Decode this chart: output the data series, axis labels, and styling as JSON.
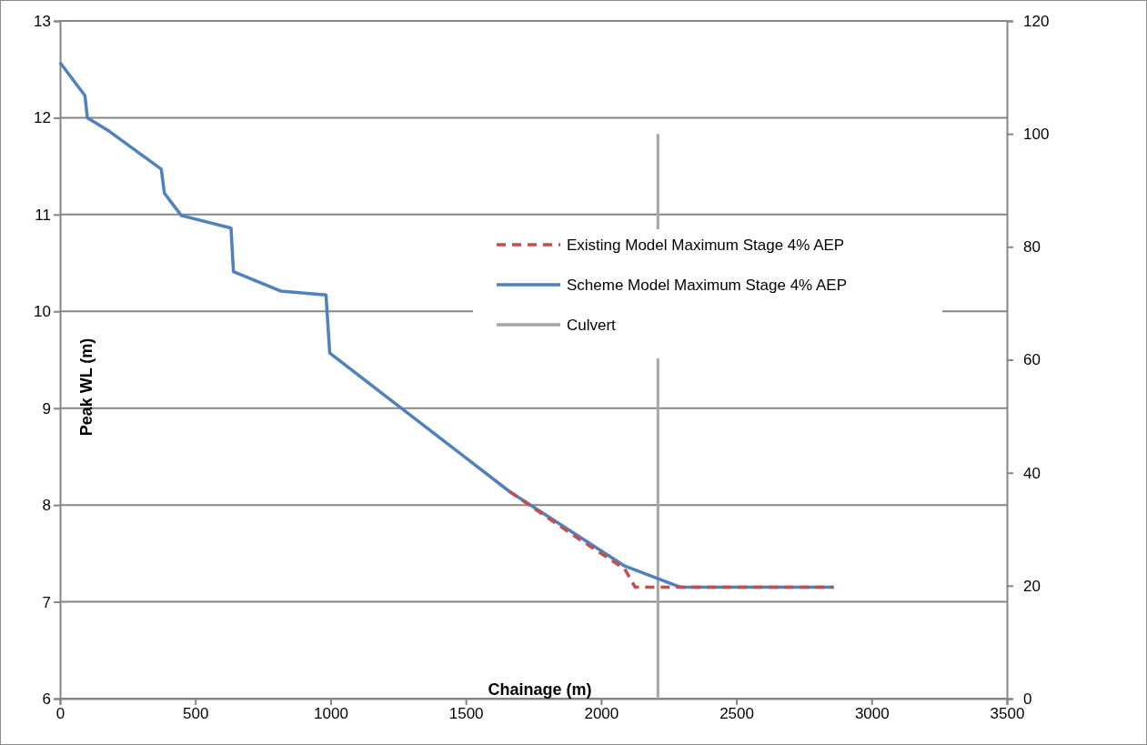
{
  "chart_data": {
    "type": "line",
    "xlabel": "Chainage (m)",
    "ylabel": "Peak WL (m)",
    "xlim": [
      0,
      3500
    ],
    "xticks": [
      0,
      500,
      1000,
      1500,
      2000,
      2500,
      3000,
      3500
    ],
    "ylim": [
      6,
      13
    ],
    "yticks": [
      6,
      7,
      8,
      9,
      10,
      11,
      12,
      13
    ],
    "y2lim": [
      0,
      120
    ],
    "y2ticks": [
      0,
      20,
      40,
      60,
      80,
      100,
      120
    ],
    "grid": "y",
    "legend": "right",
    "marker": "none",
    "series": [
      {
        "name": "Existing Model Maximum Stage 4% AEP",
        "color": "#c0504d",
        "line_style": "dashed",
        "x": [
          1661,
          1896,
          2087,
          2126,
          2860
        ],
        "values": [
          8.14,
          7.69,
          7.34,
          7.15,
          7.15
        ]
      },
      {
        "name": "Scheme Model Maximum Stage 4% AEP",
        "color": "#4f81bd",
        "line_style": "solid",
        "x": [
          0,
          92,
          101,
          182,
          374,
          386,
          448,
          632,
          641,
          815,
          983,
          997,
          1392,
          1661,
          2087,
          2294,
          2860
        ],
        "values": [
          12.57,
          12.23,
          12.0,
          11.86,
          11.47,
          11.22,
          10.99,
          10.86,
          10.41,
          10.21,
          10.17,
          9.57,
          8.72,
          8.14,
          7.37,
          7.15,
          7.15
        ]
      },
      {
        "name": "Culvert",
        "color": "#a6a6a6",
        "line_style": "solid",
        "axis": "y2",
        "x": [
          2210,
          2210
        ],
        "values": [
          0,
          100
        ]
      }
    ]
  }
}
